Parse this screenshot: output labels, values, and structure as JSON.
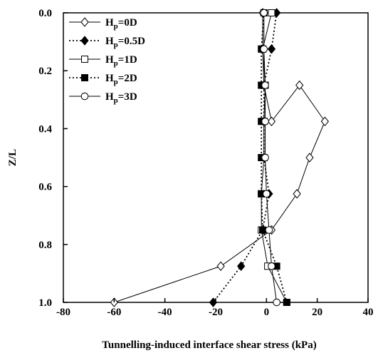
{
  "chart_data": {
    "type": "line",
    "orientation": "vertical-profile",
    "xlabel": "Tunnelling-induced interface shear stress (kPa)",
    "ylabel": "Z/L",
    "xlim": [
      -80,
      40
    ],
    "ylim": [
      0,
      1
    ],
    "y_inverted": true,
    "x_ticks": [
      "-80",
      "-60",
      "-40",
      "-20",
      "0",
      "20",
      "40"
    ],
    "y_ticks": [
      "0.0",
      "0.2",
      "0.4",
      "0.6",
      "0.8",
      "1.0"
    ],
    "grid": false,
    "legend_position": "top-left",
    "series": [
      {
        "name": "0D",
        "marker": "diamond-open",
        "line": "solid",
        "points": [
          [
            -1.5,
            0
          ],
          [
            -1.5,
            0.125
          ],
          [
            -1,
            0.25
          ],
          [
            2,
            0.375
          ],
          [
            13,
            0.25
          ],
          [
            23,
            0.375
          ],
          [
            17,
            0.5
          ],
          [
            12,
            0.625
          ],
          [
            2,
            0.75
          ],
          [
            -18,
            0.875
          ],
          [
            -60,
            1
          ]
        ]
      },
      {
        "name": "0.5D",
        "marker": "diamond-filled",
        "line": "dotted",
        "points": [
          [
            4,
            0
          ],
          [
            2,
            0.125
          ],
          [
            -1,
            0.25
          ],
          [
            -1,
            0.375
          ],
          [
            -1,
            0.5
          ],
          [
            1,
            0.625
          ],
          [
            -1.5,
            0.75
          ],
          [
            -10,
            0.875
          ],
          [
            -21,
            1
          ]
        ]
      },
      {
        "name": "1D",
        "marker": "square-open",
        "line": "solid",
        "points": [
          [
            2,
            0
          ],
          [
            -1.5,
            0.125
          ],
          [
            -0.5,
            0.25
          ],
          [
            -1,
            0.375
          ],
          [
            -1,
            0.5
          ],
          [
            -2,
            0.625
          ],
          [
            -2,
            0.75
          ],
          [
            0.5,
            0.875
          ],
          [
            8,
            1
          ]
        ]
      },
      {
        "name": "2D",
        "marker": "square-filled",
        "line": "dotted",
        "points": [
          [
            -1,
            0
          ],
          [
            -2,
            0.125
          ],
          [
            -2,
            0.25
          ],
          [
            -2,
            0.375
          ],
          [
            -2,
            0.5
          ],
          [
            -2,
            0.625
          ],
          [
            -1.5,
            0.75
          ],
          [
            4,
            0.875
          ],
          [
            8,
            1
          ]
        ]
      },
      {
        "name": "3D",
        "marker": "circle-open",
        "line": "solid",
        "points": [
          [
            -1,
            0
          ],
          [
            -1,
            0.125
          ],
          [
            -0.5,
            0.25
          ],
          [
            -0.5,
            0.375
          ],
          [
            -0.5,
            0.5
          ],
          [
            0,
            0.625
          ],
          [
            1,
            0.75
          ],
          [
            2,
            0.875
          ],
          [
            4,
            1
          ]
        ]
      }
    ],
    "legend": [
      {
        "prefix": "H",
        "sub": "p",
        "suffix": "=0D"
      },
      {
        "prefix": "H",
        "sub": "p",
        "suffix": "=0.5D"
      },
      {
        "prefix": "H",
        "sub": "p",
        "suffix": "=1D"
      },
      {
        "prefix": "H",
        "sub": "p",
        "suffix": "=2D"
      },
      {
        "prefix": "H",
        "sub": "p",
        "suffix": "=3D"
      }
    ]
  }
}
